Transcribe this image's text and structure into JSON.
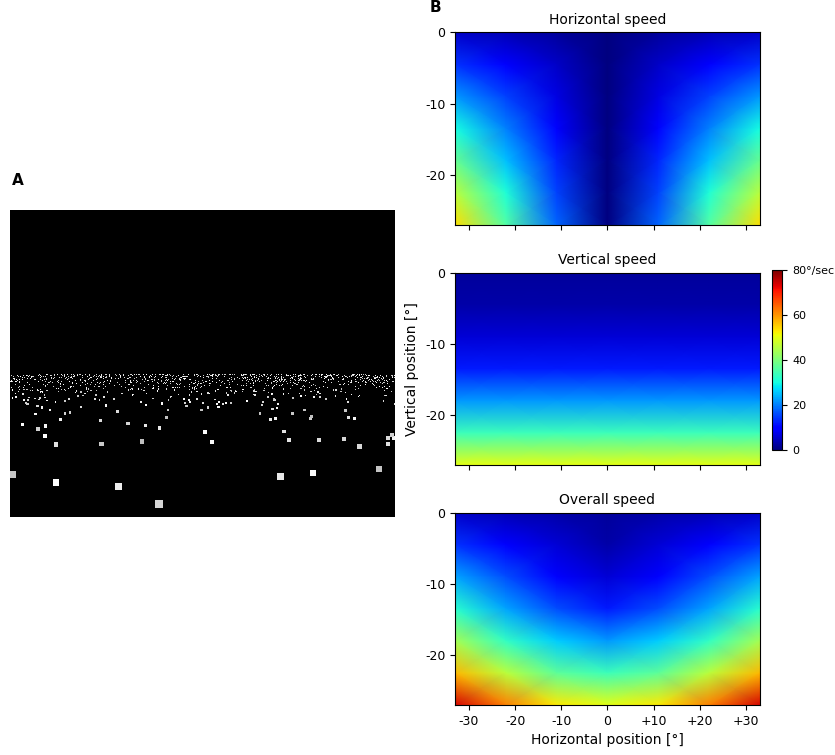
{
  "panel_labels": [
    "A",
    "B"
  ],
  "chart_data": [
    {
      "type": "heatmap",
      "title": "Horizontal speed",
      "x": [
        -33,
        -22,
        -11,
        0,
        11,
        22,
        33
      ],
      "y": [
        0,
        -4.5,
        -9,
        -13.5,
        -18,
        -22.5,
        -27
      ],
      "cells": [
        [
          5,
          4,
          2,
          0,
          2,
          4,
          5
        ],
        [
          14,
          9,
          5,
          0,
          5,
          9,
          14
        ],
        [
          22,
          15,
          7,
          0,
          7,
          15,
          22
        ],
        [
          30,
          20,
          10,
          0,
          10,
          20,
          30
        ],
        [
          38,
          25,
          13,
          0,
          13,
          25,
          38
        ],
        [
          46,
          31,
          15,
          0,
          15,
          31,
          46
        ],
        [
          54,
          36,
          18,
          0,
          18,
          36,
          54
        ]
      ],
      "xlim": [
        -33,
        33
      ],
      "ylim": [
        -27,
        0
      ],
      "xticks": [
        -30,
        -20,
        -10,
        0,
        {
          "value": 10,
          "label": "+10"
        },
        {
          "value": 20,
          "label": "+20"
        },
        {
          "value": 30,
          "label": "+30"
        }
      ],
      "yticks": [
        0,
        -10,
        -20
      ],
      "tick_labels": "y"
    },
    {
      "type": "heatmap",
      "title": "Vertical speed",
      "y_label": "Vertical position [°]",
      "x": [
        -33,
        -22,
        -11,
        0,
        11,
        22,
        33
      ],
      "y": [
        0,
        -4.5,
        -9,
        -13.5,
        -18,
        -22.5,
        -27
      ],
      "cells": [
        [
          2,
          2,
          2,
          2,
          2,
          2,
          2
        ],
        [
          3,
          3,
          3,
          3,
          3,
          3,
          3
        ],
        [
          6,
          6,
          6,
          6,
          6,
          6,
          6
        ],
        [
          12,
          12,
          12,
          12,
          12,
          12,
          12
        ],
        [
          22,
          22,
          22,
          22,
          22,
          22,
          22
        ],
        [
          34,
          34,
          34,
          34,
          34,
          34,
          34
        ],
        [
          50,
          50,
          50,
          50,
          50,
          50,
          50
        ]
      ],
      "xlim": [
        -33,
        33
      ],
      "ylim": [
        -27,
        0
      ],
      "xticks": [
        -30,
        -20,
        -10,
        0,
        {
          "value": 10,
          "label": "+10"
        },
        {
          "value": 20,
          "label": "+20"
        },
        {
          "value": 30,
          "label": "+30"
        }
      ],
      "yticks": [
        0,
        -10,
        -20
      ],
      "tick_labels": "y",
      "colorbar": {
        "range": [
          0,
          80
        ],
        "ticks": [
          0,
          20,
          40,
          60,
          {
            "value": 80,
            "label": "80°/sec"
          }
        ]
      }
    },
    {
      "type": "heatmap",
      "title": "Overall speed",
      "x_label": "Horizontal position [°]",
      "x": [
        -33,
        -22,
        -11,
        0,
        11,
        22,
        33
      ],
      "y": [
        0,
        -4.5,
        -9,
        -13.5,
        -18,
        -22.5,
        -27
      ],
      "cells": [
        [
          5,
          4,
          3,
          2,
          3,
          4,
          5
        ],
        [
          14,
          9,
          6,
          3,
          6,
          9,
          14
        ],
        [
          23,
          16,
          9,
          6,
          9,
          16,
          23
        ],
        [
          32,
          23,
          16,
          12,
          16,
          23,
          32
        ],
        [
          44,
          33,
          26,
          22,
          26,
          33,
          44
        ],
        [
          57,
          46,
          37,
          34,
          37,
          46,
          57
        ],
        [
          74,
          62,
          53,
          50,
          53,
          62,
          74
        ]
      ],
      "xlim": [
        -33,
        33
      ],
      "ylim": [
        -27,
        0
      ],
      "xticks": [
        -30,
        -20,
        -10,
        0,
        {
          "value": 10,
          "label": "+10"
        },
        {
          "value": 20,
          "label": "+20"
        },
        {
          "value": 30,
          "label": "+30"
        }
      ],
      "yticks": [
        0,
        -10,
        -20
      ]
    }
  ]
}
